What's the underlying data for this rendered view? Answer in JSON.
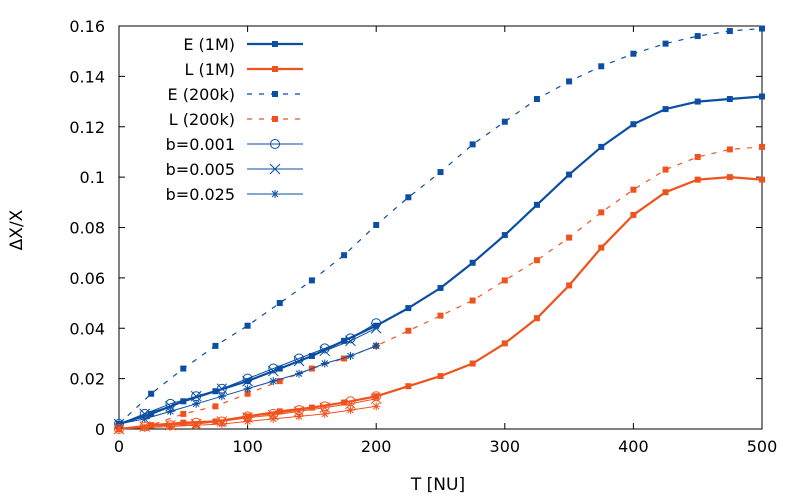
{
  "chart_data": {
    "type": "line",
    "xlabel": "T [NU]",
    "ylabel": "ΔX/X",
    "xlim": [
      0,
      500
    ],
    "ylim": [
      0,
      0.16
    ],
    "x_ticks": [
      "0",
      "100",
      "200",
      "300",
      "400",
      "500"
    ],
    "y_ticks": [
      "0",
      "0.02",
      "0.04",
      "0.06",
      "0.08",
      "0.1",
      "0.12",
      "0.14",
      "0.16"
    ],
    "grid": false,
    "legend_position": "top-left",
    "colors": {
      "blue": "#0b4ea2",
      "orange": "#f0521e"
    },
    "series": [
      {
        "name": "E (1M)",
        "color": "#0b4ea2",
        "style": "solid",
        "marker": "square",
        "width": 2.2,
        "x": [
          0,
          25,
          50,
          75,
          100,
          125,
          150,
          175,
          200,
          225,
          250,
          275,
          300,
          325,
          350,
          375,
          400,
          425,
          450,
          475,
          500
        ],
        "y": [
          0.002,
          0.006,
          0.011,
          0.015,
          0.019,
          0.024,
          0.029,
          0.035,
          0.041,
          0.048,
          0.056,
          0.066,
          0.077,
          0.089,
          0.101,
          0.112,
          0.121,
          0.127,
          0.13,
          0.131,
          0.132
        ]
      },
      {
        "name": "L (1M)",
        "color": "#f0521e",
        "style": "solid",
        "marker": "square",
        "width": 2.2,
        "x": [
          0,
          25,
          50,
          75,
          100,
          125,
          150,
          175,
          200,
          225,
          250,
          275,
          300,
          325,
          350,
          375,
          400,
          425,
          450,
          475,
          500
        ],
        "y": [
          0,
          0.0015,
          0.0025,
          0.003,
          0.005,
          0.007,
          0.0085,
          0.0105,
          0.013,
          0.017,
          0.021,
          0.026,
          0.034,
          0.044,
          0.057,
          0.072,
          0.085,
          0.094,
          0.099,
          0.1,
          0.099
        ]
      },
      {
        "name": "E (200k)",
        "color": "#0b4ea2",
        "style": "dashed",
        "marker": "square",
        "width": 1.2,
        "x": [
          0,
          25,
          50,
          75,
          100,
          125,
          150,
          175,
          200,
          225,
          250,
          275,
          300,
          325,
          350,
          375,
          400,
          425,
          450,
          475,
          500
        ],
        "y": [
          0.002,
          0.014,
          0.024,
          0.033,
          0.041,
          0.05,
          0.059,
          0.069,
          0.081,
          0.092,
          0.102,
          0.113,
          0.122,
          0.131,
          0.138,
          0.144,
          0.149,
          0.153,
          0.156,
          0.158,
          0.159
        ]
      },
      {
        "name": "L (200k)",
        "color": "#f0521e",
        "style": "dashed",
        "marker": "square",
        "width": 1.2,
        "x": [
          0,
          25,
          50,
          75,
          100,
          125,
          150,
          175,
          200,
          225,
          250,
          275,
          300,
          325,
          350,
          375,
          400,
          425,
          450,
          475,
          500
        ],
        "y": [
          0,
          0.0015,
          0.006,
          0.009,
          0.014,
          0.019,
          0.024,
          0.028,
          0.033,
          0.039,
          0.045,
          0.051,
          0.059,
          0.067,
          0.076,
          0.086,
          0.095,
          0.103,
          0.108,
          0.111,
          0.112
        ]
      },
      {
        "name": "b=0.001",
        "color": "#0b4ea2",
        "style": "thin",
        "marker": "circle",
        "width": 1,
        "x": [
          0,
          20,
          40,
          60,
          80,
          100,
          120,
          140,
          160,
          180,
          200
        ],
        "y": [
          0.002,
          0.006,
          0.01,
          0.013,
          0.016,
          0.02,
          0.024,
          0.028,
          0.032,
          0.036,
          0.042
        ]
      },
      {
        "name": "b=0.005",
        "color": "#0b4ea2",
        "style": "thin",
        "marker": "cross",
        "width": 1,
        "x": [
          0,
          20,
          40,
          60,
          80,
          100,
          120,
          140,
          160,
          180,
          200
        ],
        "y": [
          0.002,
          0.006,
          0.009,
          0.013,
          0.016,
          0.019,
          0.023,
          0.027,
          0.031,
          0.035,
          0.04
        ]
      },
      {
        "name": "b=0.025",
        "color": "#0b4ea2",
        "style": "thin",
        "marker": "star",
        "width": 1,
        "x": [
          0,
          20,
          40,
          60,
          80,
          100,
          120,
          140,
          160,
          180,
          200
        ],
        "y": [
          0.002,
          0.004,
          0.007,
          0.01,
          0.013,
          0.016,
          0.019,
          0.022,
          0.026,
          0.029,
          0.033
        ]
      },
      {
        "name": "",
        "color": "#f0521e",
        "style": "thin",
        "marker": "circle",
        "width": 1,
        "x": [
          0,
          20,
          40,
          60,
          80,
          100,
          120,
          140,
          160,
          180,
          200
        ],
        "y": [
          0,
          0.001,
          0.0015,
          0.0025,
          0.003,
          0.005,
          0.006,
          0.0075,
          0.009,
          0.011,
          0.013
        ]
      },
      {
        "name": "",
        "color": "#f0521e",
        "style": "thin",
        "marker": "cross",
        "width": 1,
        "x": [
          0,
          20,
          40,
          60,
          80,
          100,
          120,
          140,
          160,
          180,
          200
        ],
        "y": [
          0,
          0.001,
          0.0015,
          0.002,
          0.003,
          0.0045,
          0.0055,
          0.007,
          0.0085,
          0.01,
          0.012
        ]
      },
      {
        "name": "",
        "color": "#f0521e",
        "style": "thin",
        "marker": "star",
        "width": 1,
        "x": [
          0,
          20,
          40,
          60,
          80,
          100,
          120,
          140,
          160,
          180,
          200
        ],
        "y": [
          0,
          0.0005,
          0.001,
          0.0015,
          0.002,
          0.003,
          0.004,
          0.005,
          0.006,
          0.0075,
          0.009
        ]
      }
    ]
  }
}
